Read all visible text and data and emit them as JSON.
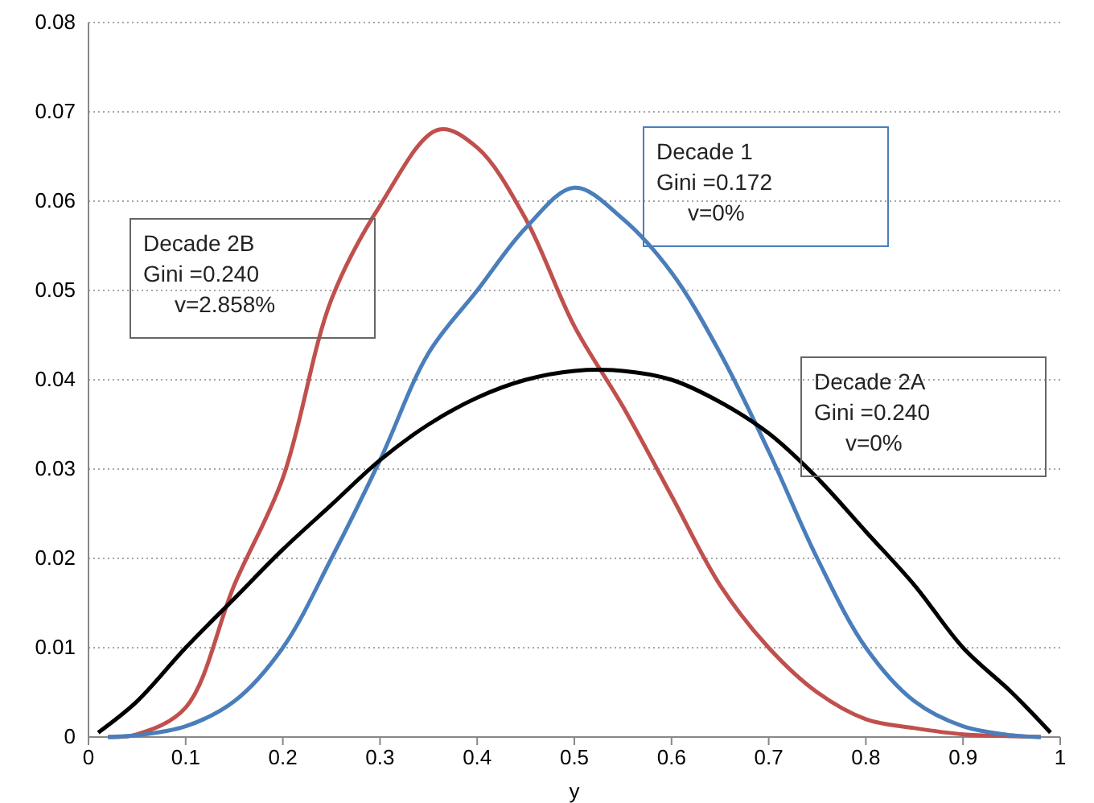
{
  "chart_data": {
    "type": "line",
    "xlabel": "y",
    "xlim": [
      0,
      1
    ],
    "xticks": [
      0,
      0.1,
      0.2,
      0.3,
      0.4,
      0.5,
      0.6,
      0.7,
      0.8,
      0.9,
      1
    ],
    "ylim": [
      0,
      0.08
    ],
    "yticks": [
      0,
      0.01,
      0.02,
      0.03,
      0.04,
      0.05,
      0.06,
      0.07,
      0.08
    ],
    "grid": "y",
    "line_style": "solid",
    "marker": "none",
    "series": [
      {
        "color": "#c0504d",
        "x": [
          0.02,
          0.05,
          0.1,
          0.15,
          0.2,
          0.25,
          0.3,
          0.36,
          0.4,
          0.45,
          0.5,
          0.55,
          0.6,
          0.65,
          0.7,
          0.75,
          0.8,
          0.85,
          0.9,
          0.95,
          0.98
        ],
        "values": [
          0,
          0.0003,
          0.0033,
          0.017,
          0.029,
          0.049,
          0.0595,
          0.068,
          0.066,
          0.058,
          0.046,
          0.037,
          0.027,
          0.017,
          0.01,
          0.005,
          0.002,
          0.001,
          0.0003,
          0.0001,
          0
        ]
      },
      {
        "color": "#4a7ebb",
        "x": [
          0.02,
          0.05,
          0.1,
          0.15,
          0.2,
          0.25,
          0.3,
          0.35,
          0.4,
          0.45,
          0.5,
          0.55,
          0.6,
          0.65,
          0.7,
          0.75,
          0.8,
          0.85,
          0.9,
          0.95,
          0.98
        ],
        "values": [
          0,
          0.0002,
          0.0012,
          0.004,
          0.01,
          0.02,
          0.031,
          0.043,
          0.05,
          0.057,
          0.0615,
          0.058,
          0.052,
          0.043,
          0.032,
          0.02,
          0.01,
          0.004,
          0.0012,
          0.0002,
          0
        ]
      },
      {
        "color": "#000000",
        "x": [
          0.01,
          0.05,
          0.1,
          0.15,
          0.2,
          0.25,
          0.3,
          0.35,
          0.4,
          0.45,
          0.5,
          0.55,
          0.6,
          0.65,
          0.7,
          0.75,
          0.8,
          0.85,
          0.9,
          0.95,
          0.99
        ],
        "values": [
          0.0005,
          0.004,
          0.01,
          0.0155,
          0.021,
          0.026,
          0.031,
          0.035,
          0.038,
          0.04,
          0.041,
          0.041,
          0.04,
          0.0375,
          0.034,
          0.029,
          0.023,
          0.017,
          0.01,
          0.005,
          0.0005
        ]
      }
    ],
    "annotations": [
      "Decade 2B\nGini =0.240\n     v=2.858%",
      "Decade 1\nGini =0.172\n     v=0%",
      "Decade 2A\nGini =0.240\n     v=0%"
    ]
  }
}
